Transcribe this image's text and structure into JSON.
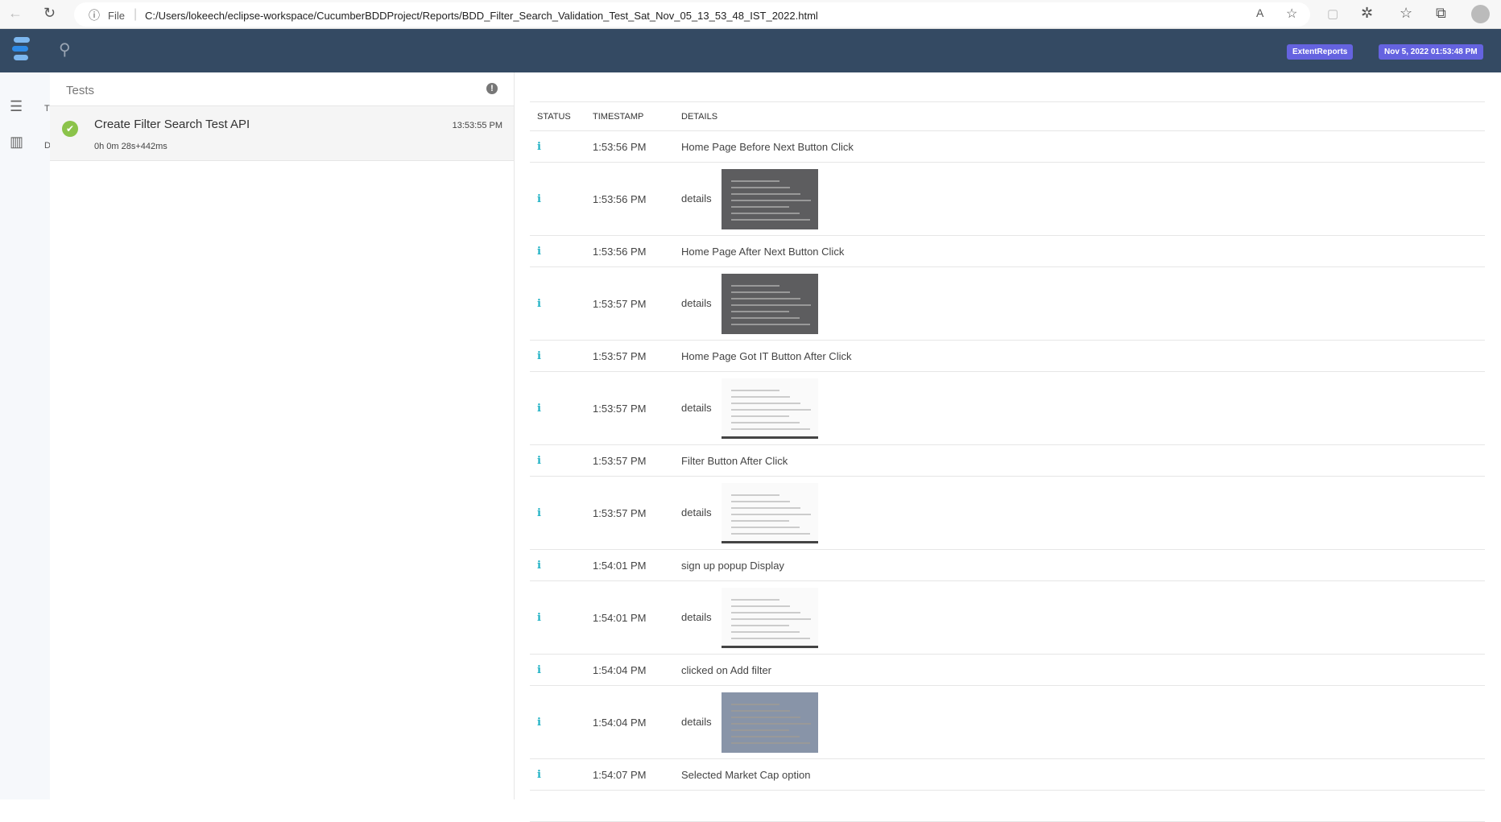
{
  "browser": {
    "file_label": "File",
    "url": "C:/Users/lokeech/eclipse-workspace/CucumberBDDProject/Reports/BDD_Filter_Search_Validation_Test_Sat_Nov_05_13_53_48_IST_2022.html"
  },
  "nav": {
    "brand_badge": "ExtentReports",
    "date_badge": "Nov 5, 2022 01:53:48 PM",
    "accent": "#6563e0",
    "bg": "#344a63"
  },
  "sidebar": {
    "items": [
      {
        "label": "T",
        "icon": "list-icon"
      },
      {
        "label": "D",
        "icon": "bar-chart-icon"
      }
    ]
  },
  "tests": {
    "title": "Tests",
    "items": [
      {
        "name": "Create Filter Search Test API",
        "duration": "0h 0m 28s+442ms",
        "time": "13:53:55 PM",
        "status": "pass"
      }
    ]
  },
  "log": {
    "headers": [
      "STATUS",
      "TIMESTAMP",
      "DETAILS"
    ],
    "rows": [
      {
        "type": "text",
        "time": "1:53:56 PM",
        "details": "Home Page Before Next Button Click"
      },
      {
        "type": "shot",
        "time": "1:53:56 PM",
        "details": "details",
        "thumb": "dark"
      },
      {
        "type": "text",
        "time": "1:53:56 PM",
        "details": "Home Page After Next Button Click"
      },
      {
        "type": "shot",
        "time": "1:53:57 PM",
        "details": "details",
        "thumb": "dark"
      },
      {
        "type": "text",
        "time": "1:53:57 PM",
        "details": "Home Page Got IT Button After Click"
      },
      {
        "type": "shot",
        "time": "1:53:57 PM",
        "details": "details",
        "thumb": "light"
      },
      {
        "type": "text",
        "time": "1:53:57 PM",
        "details": "Filter Button After Click"
      },
      {
        "type": "shot",
        "time": "1:53:57 PM",
        "details": "details",
        "thumb": "light"
      },
      {
        "type": "text",
        "time": "1:54:01 PM",
        "details": "sign up popup Display"
      },
      {
        "type": "shot",
        "time": "1:54:01 PM",
        "details": "details",
        "thumb": "light"
      },
      {
        "type": "text",
        "time": "1:54:04 PM",
        "details": "clicked on Add filter"
      },
      {
        "type": "shot",
        "time": "1:54:04 PM",
        "details": "details",
        "thumb": "blue"
      },
      {
        "type": "text",
        "time": "1:54:07 PM",
        "details": "Selected Market Cap option"
      }
    ]
  }
}
